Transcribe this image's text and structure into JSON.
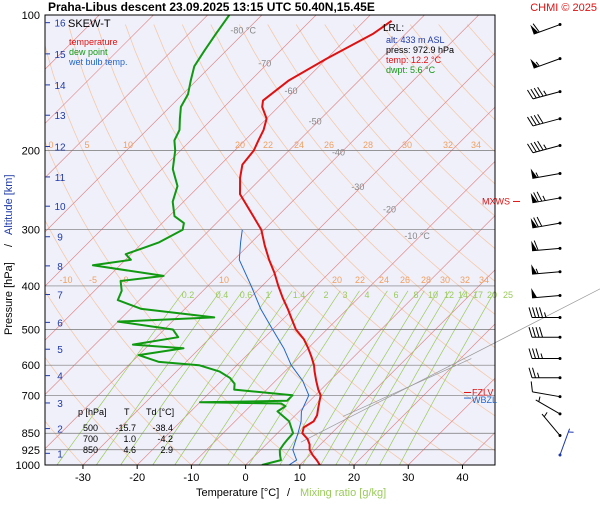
{
  "header": {
    "title": "Praha-Libus   descent   23.09.2025 13:15 UTC   50.40N,15.45E",
    "credit": "CHMI © 2025"
  },
  "legend": {
    "title": "SKEW-T",
    "items": [
      {
        "label": "temperature",
        "color": "#e01010"
      },
      {
        "label": "dew point",
        "color": "#119911"
      },
      {
        "label": "wet bulb temp.",
        "color": "#2266cc"
      }
    ]
  },
  "lrl": {
    "title": "LRL:",
    "lines": [
      {
        "text": "alt: 433 m ASL",
        "color": "#1f3aa8"
      },
      {
        "text": "press: 972.9 hPa",
        "color": "#000000"
      },
      {
        "text": "temp: 12.2 °C",
        "color": "#e01010"
      },
      {
        "text": "dwpt: 5.6 °C",
        "color": "#119911"
      }
    ]
  },
  "annotations": {
    "mxws": "MXWS",
    "fzlv": "FZLV",
    "wbzl": "WBZL"
  },
  "summary_table": {
    "headers": [
      "p [hPa]",
      "T",
      "Td [°C]"
    ],
    "rows": [
      [
        "500",
        "-15.7",
        "-38.4"
      ],
      [
        "700",
        "1.0",
        "-4.2"
      ],
      [
        "850",
        "4.6",
        "2.9"
      ]
    ]
  },
  "colors": {
    "plot_bg": "#f0f0fb",
    "isobar": "#777777",
    "isotherm": "#e08a8a",
    "dry_adiabat": "#f5c9a8",
    "mixing_ratio": "#9acb5a",
    "temperature": "#e01010",
    "dewpoint": "#119911",
    "wetbulb": "#2266cc",
    "altitude": "#1f3aa8",
    "credit": "#e01010"
  },
  "chart_data": {
    "type": "line",
    "xlabel": "Temperature [°C]",
    "xlabel_sep": "/",
    "xlabel2": "Mixing ratio [g/kg]",
    "ylabel": "Pressure [hPa]",
    "ylabel_sep": "/",
    "ylabel2": "Altitude [km]",
    "x_ticks": [
      "-30",
      "-20",
      "-10",
      "0",
      "10",
      "20",
      "30",
      "40"
    ],
    "x_tick_values": [
      -30,
      -20,
      -10,
      0,
      10,
      20,
      30,
      40
    ],
    "y_ticks": [
      "100",
      "200",
      "300",
      "400",
      "500",
      "600",
      "700",
      "850",
      "925",
      "1000"
    ],
    "y_tick_values": [
      100,
      200,
      300,
      400,
      500,
      600,
      700,
      850,
      925,
      1000
    ],
    "y_scale": "log",
    "xlim": [
      -37,
      46
    ],
    "ylim": [
      1000,
      100
    ],
    "altitude_ticks": [
      {
        "label": "1",
        "p": 942
      },
      {
        "label": "2",
        "p": 830
      },
      {
        "label": "3",
        "p": 728
      },
      {
        "label": "4",
        "p": 633
      },
      {
        "label": "5",
        "p": 553
      },
      {
        "label": "6",
        "p": 482
      },
      {
        "label": "7",
        "p": 418
      },
      {
        "label": "8",
        "p": 361
      },
      {
        "label": "9",
        "p": 311
      },
      {
        "label": "10",
        "p": 266
      },
      {
        "label": "11",
        "p": 229
      },
      {
        "label": "12",
        "p": 196
      },
      {
        "label": "13",
        "p": 167
      },
      {
        "label": "14",
        "p": 143
      },
      {
        "label": "15",
        "p": 122
      },
      {
        "label": "16",
        "p": 104
      }
    ],
    "isotherm_labels": [
      {
        "label": "-80 °C",
        "t": -80,
        "p": 110
      },
      {
        "label": "-70",
        "t": -70,
        "p": 130
      },
      {
        "label": "-60",
        "t": -60,
        "p": 150
      },
      {
        "label": "-50",
        "t": -50,
        "p": 175
      },
      {
        "label": "-40",
        "t": -40,
        "p": 205
      },
      {
        "label": "-30",
        "t": -30,
        "p": 245
      },
      {
        "label": "-20",
        "t": -20,
        "p": 275
      },
      {
        "label": "-10 °C",
        "t": -10,
        "p": 315
      }
    ],
    "adiabat_labels_upper": [
      "0",
      "5",
      "10",
      "20",
      "22",
      "24",
      "26",
      "28",
      "30",
      "32",
      "34"
    ],
    "adiabat_labels_lower": [
      "-10",
      "-5",
      "0",
      "10",
      "20",
      "22",
      "24",
      "26",
      "28",
      "30",
      "32",
      "34"
    ],
    "mixing_ratio_labels": [
      "0.2",
      "0.4",
      "0.6",
      "1",
      "1.4",
      "2",
      "3",
      "4",
      "6",
      "8",
      "10",
      "12",
      "14",
      "17",
      "20",
      "25"
    ],
    "mixing_ratio_values": [
      0.2,
      0.4,
      0.6,
      1,
      1.4,
      2,
      3,
      4,
      6,
      8,
      10,
      12,
      14,
      17,
      20,
      25
    ],
    "series": [
      {
        "name": "temperature",
        "color": "#e01010",
        "points": [
          [
            1000,
            13.7
          ],
          [
            975,
            12.2
          ],
          [
            950,
            10.5
          ],
          [
            925,
            9.0
          ],
          [
            900,
            8.0
          ],
          [
            875,
            6.6
          ],
          [
            850,
            4.6
          ],
          [
            825,
            3.8
          ],
          [
            800,
            4.5
          ],
          [
            775,
            4.0
          ],
          [
            750,
            3.0
          ],
          [
            725,
            2.0
          ],
          [
            700,
            1.0
          ],
          [
            680,
            -0.5
          ],
          [
            650,
            -2.5
          ],
          [
            620,
            -4.5
          ],
          [
            600,
            -5.8
          ],
          [
            575,
            -7.8
          ],
          [
            550,
            -10
          ],
          [
            525,
            -12.5
          ],
          [
            500,
            -15.7
          ],
          [
            475,
            -18.3
          ],
          [
            450,
            -21
          ],
          [
            425,
            -24
          ],
          [
            400,
            -27
          ],
          [
            375,
            -30
          ],
          [
            350,
            -33.5
          ],
          [
            325,
            -37
          ],
          [
            300,
            -40.5
          ],
          [
            275,
            -45.5
          ],
          [
            250,
            -51
          ],
          [
            230,
            -54
          ],
          [
            215,
            -56
          ],
          [
            200,
            -56.5
          ],
          [
            190,
            -57.5
          ],
          [
            180,
            -58.5
          ],
          [
            170,
            -60
          ],
          [
            160,
            -63
          ],
          [
            155,
            -64
          ],
          [
            140,
            -63
          ],
          [
            125,
            -60
          ],
          [
            110,
            -56
          ],
          [
            103,
            -55
          ]
        ]
      },
      {
        "name": "dew point",
        "color": "#119911",
        "points": [
          [
            1000,
            3.0
          ],
          [
            975,
            5.6
          ],
          [
            950,
            4.5
          ],
          [
            925,
            3.5
          ],
          [
            900,
            3.2
          ],
          [
            875,
            3.0
          ],
          [
            850,
            2.9
          ],
          [
            800,
            0
          ],
          [
            760,
            -4
          ],
          [
            740,
            -3.5
          ],
          [
            730,
            -4.8
          ],
          [
            725,
            -20
          ],
          [
            720,
            -4.2
          ],
          [
            700,
            -4.2
          ],
          [
            680,
            -16
          ],
          [
            660,
            -17
          ],
          [
            640,
            -19
          ],
          [
            620,
            -22
          ],
          [
            600,
            -27
          ],
          [
            590,
            -35
          ],
          [
            570,
            -40
          ],
          [
            550,
            -33
          ],
          [
            540,
            -43
          ],
          [
            520,
            -36
          ],
          [
            500,
            -38.4
          ],
          [
            480,
            -50
          ],
          [
            470,
            -33
          ],
          [
            450,
            -48
          ],
          [
            430,
            -54
          ],
          [
            410,
            -55
          ],
          [
            390,
            -57
          ],
          [
            380,
            -50
          ],
          [
            360,
            -65
          ],
          [
            350,
            -59
          ],
          [
            340,
            -61
          ],
          [
            330,
            -59
          ],
          [
            320,
            -57
          ],
          [
            300,
            -55
          ],
          [
            290,
            -56
          ],
          [
            280,
            -59
          ],
          [
            260,
            -62
          ],
          [
            240,
            -64
          ],
          [
            220,
            -68
          ],
          [
            200,
            -71
          ],
          [
            190,
            -73
          ],
          [
            180,
            -74
          ],
          [
            170,
            -76
          ],
          [
            160,
            -78
          ],
          [
            150,
            -79
          ],
          [
            140,
            -81
          ],
          [
            130,
            -83
          ],
          [
            120,
            -84
          ],
          [
            110,
            -85
          ],
          [
            100,
            -86
          ]
        ]
      },
      {
        "name": "wet bulb temp.",
        "color": "#2266cc",
        "points": [
          [
            1000,
            8.0
          ],
          [
            975,
            8.5
          ],
          [
            950,
            7.2
          ],
          [
            925,
            5.9
          ],
          [
            900,
            5.2
          ],
          [
            850,
            3.8
          ],
          [
            800,
            2.2
          ],
          [
            760,
            0.4
          ],
          [
            700,
            -1.2
          ],
          [
            650,
            -5
          ],
          [
            600,
            -10
          ],
          [
            550,
            -14.5
          ],
          [
            500,
            -20
          ],
          [
            450,
            -26
          ],
          [
            400,
            -32
          ],
          [
            350,
            -39
          ],
          [
            320,
            -42
          ],
          [
            300,
            -44
          ]
        ]
      }
    ],
    "wind_barbs": [
      {
        "p": 105,
        "dir": 250,
        "spd": 60
      },
      {
        "p": 125,
        "dir": 250,
        "spd": 55
      },
      {
        "p": 148,
        "dir": 255,
        "spd": 45
      },
      {
        "p": 170,
        "dir": 255,
        "spd": 40
      },
      {
        "p": 195,
        "dir": 255,
        "spd": 45
      },
      {
        "p": 225,
        "dir": 260,
        "spd": 55
      },
      {
        "p": 255,
        "dir": 260,
        "spd": 75
      },
      {
        "p": 290,
        "dir": 260,
        "spd": 70
      },
      {
        "p": 330,
        "dir": 265,
        "spd": 60
      },
      {
        "p": 372,
        "dir": 265,
        "spd": 55
      },
      {
        "p": 420,
        "dir": 265,
        "spd": 50
      },
      {
        "p": 470,
        "dir": 270,
        "spd": 45
      },
      {
        "p": 520,
        "dir": 270,
        "spd": 40
      },
      {
        "p": 580,
        "dir": 270,
        "spd": 35
      },
      {
        "p": 640,
        "dir": 270,
        "spd": 25
      },
      {
        "p": 705,
        "dir": 280,
        "spd": 10
      },
      {
        "p": 770,
        "dir": 300,
        "spd": 5
      },
      {
        "p": 860,
        "dir": 320,
        "spd": 5
      },
      {
        "p": 950,
        "dir": 20,
        "spd": 5
      }
    ],
    "mxws_p": 265,
    "fzlv_p": 690,
    "wbzl_p": 710,
    "lcl_line": {
      "p1": 890,
      "t1": 6,
      "p2": 330,
      "t2": 40
    },
    "lcl_line2": {
      "p1": 780,
      "t1": 9,
      "p2": 580,
      "t2": 22
    }
  }
}
